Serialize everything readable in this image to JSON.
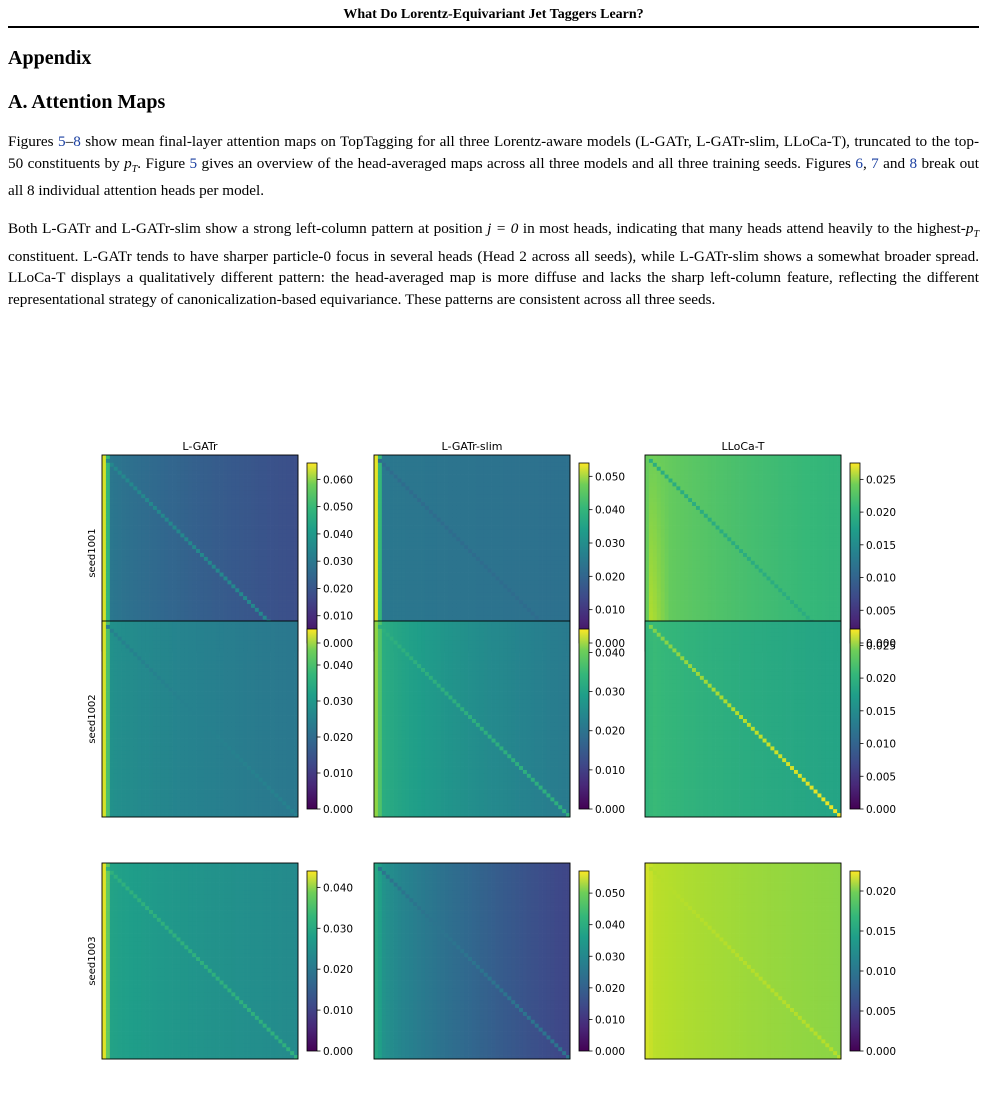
{
  "running_head": "What Do Lorentz-Equivariant Jet Taggers Learn?",
  "section_title": "Appendix",
  "subsection_title": "A. Attention Maps",
  "paragraph1": {
    "t1": "Figures ",
    "ref_a": "5",
    "dash": "–",
    "ref_b": "8",
    "t2": " show mean final-layer attention maps on TopTagging for all three Lorentz-aware models (L-GATr, L-GATr-slim, LLoCa-T), truncated to the top-50 constituents by ",
    "math_pt": "pT",
    "t3": ". Figure ",
    "ref_c": "5",
    "t4": " gives an overview of the head-averaged maps across all three models and all three training seeds. Figures ",
    "ref_d": "6",
    "t5": ", ",
    "ref_e": "7",
    "t6": " and ",
    "ref_f": "8",
    "t7": " break out all 8 individual attention heads per model."
  },
  "paragraph2": {
    "t1": "Both L-GATr and L-GATr-slim show a strong left-column pattern at position ",
    "math_j": "j = 0",
    "t2": " in most heads, indicating that many heads attend heavily to the highest-",
    "math_pt": "pT",
    "t3": " constituent. L-GATr tends to have sharper particle-0 focus in several heads (Head 2 across all seeds), while L-GATr-slim shows a somewhat broader spread. LLoCa-T displays a qualitatively different pattern: the head-averaged map is more diffuse and lacks the sharp left-column feature, reflecting the different representational strategy of canonicalization-based equivariance. These patterns are consistent across all three seeds."
  },
  "chart_data": {
    "type": "heatmap",
    "colormap": "viridis",
    "matrix_size": 50,
    "columns": [
      "L-GATr",
      "L-GATr-slim",
      "LLoCa-T"
    ],
    "rows": [
      "seed1001",
      "seed1002",
      "seed1003"
    ],
    "panels": [
      {
        "model": "L-GATr",
        "seed": "seed1001",
        "vmax": 0.066,
        "ticks": [
          "0.000",
          "0.010",
          "0.020",
          "0.030",
          "0.040",
          "0.050",
          "0.060"
        ],
        "col0": 0.062,
        "bg_left": 0.028,
        "bg_right": 0.016,
        "diag": 0.031
      },
      {
        "model": "L-GATr-slim",
        "seed": "seed1001",
        "vmax": 0.054,
        "ticks": [
          "0.000",
          "0.010",
          "0.020",
          "0.030",
          "0.040",
          "0.050"
        ],
        "col0": 0.052,
        "bg_left": 0.022,
        "bg_right": 0.02,
        "diag": 0.019
      },
      {
        "model": "LLoCa-T",
        "seed": "seed1001",
        "vmax": 0.0275,
        "ticks": [
          "0.000",
          "0.005",
          "0.010",
          "0.015",
          "0.020",
          "0.025"
        ],
        "col0": 0.021,
        "bg_left": 0.022,
        "bg_right": 0.018,
        "diag": 0.017,
        "bottom_left_boost": 0.004
      },
      {
        "model": "L-GATr",
        "seed": "seed1002",
        "vmax": 0.05,
        "ticks": [
          "0.000",
          "0.010",
          "0.020",
          "0.030",
          "0.040"
        ],
        "col0": 0.047,
        "bg_left": 0.026,
        "bg_right": 0.02,
        "diag": 0.022
      },
      {
        "model": "L-GATr-slim",
        "seed": "seed1002",
        "vmax": 0.046,
        "ticks": [
          "0.000",
          "0.010",
          "0.020",
          "0.030",
          "0.040"
        ],
        "col0": 0.038,
        "bg_left": 0.03,
        "bg_right": 0.019,
        "diag": 0.029
      },
      {
        "model": "LLoCa-T",
        "seed": "seed1002",
        "vmax": 0.0275,
        "ticks": [
          "0.000",
          "0.005",
          "0.010",
          "0.015",
          "0.020",
          "0.025"
        ],
        "col0": 0.018,
        "bg_left": 0.019,
        "bg_right": 0.016,
        "diag": 0.022,
        "diag_bottom_boost": 0.005
      },
      {
        "model": "L-GATr",
        "seed": "seed1003",
        "vmax": 0.044,
        "ticks": [
          "0.000",
          "0.010",
          "0.020",
          "0.030",
          "0.040"
        ],
        "col0": 0.042,
        "bg_left": 0.026,
        "bg_right": 0.021,
        "diag": 0.028
      },
      {
        "model": "L-GATr-slim",
        "seed": "seed1003",
        "vmax": 0.057,
        "ticks": [
          "0.000",
          "0.010",
          "0.020",
          "0.030",
          "0.040",
          "0.050"
        ],
        "col0": 0.034,
        "bg_left": 0.032,
        "bg_right": 0.012,
        "diag": 0.022
      },
      {
        "model": "LLoCa-T",
        "seed": "seed1003",
        "vmax": 0.0225,
        "ticks": [
          "0.000",
          "0.005",
          "0.010",
          "0.015",
          "0.020"
        ],
        "col0": 0.021,
        "bg_left": 0.0205,
        "bg_right": 0.0185,
        "diag": 0.02
      }
    ]
  }
}
